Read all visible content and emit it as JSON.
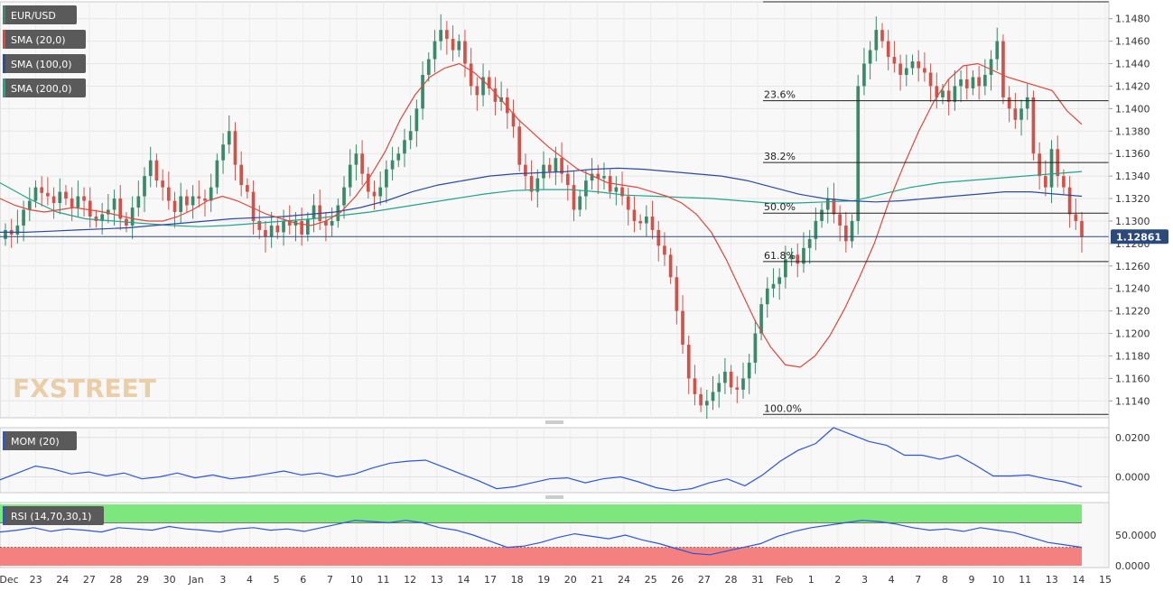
{
  "chart_data": {
    "type": "candlestick",
    "symbol": "EUR/USD",
    "price_scale": {
      "ylim": [
        1.1125,
        1.1495
      ],
      "ticks": [
        "1.1140",
        "1.1160",
        "1.1180",
        "1.1200",
        "1.1220",
        "1.1240",
        "1.1260",
        "1.1280",
        "1.1300",
        "1.1320",
        "1.1340",
        "1.1360",
        "1.1380",
        "1.1400",
        "1.1420",
        "1.1440",
        "1.1460",
        "1.1480"
      ]
    },
    "current_price": "1.12861",
    "x_ticks": [
      "Dec",
      "23",
      "24",
      "27",
      "28",
      "29",
      "30",
      "Jan",
      "3",
      "4",
      "5",
      "6",
      "7",
      "10",
      "11",
      "12",
      "13",
      "14",
      "17",
      "18",
      "19",
      "20",
      "21",
      "24",
      "25",
      "26",
      "27",
      "28",
      "31",
      "Feb",
      "1",
      "2",
      "3",
      "4",
      "7",
      "8",
      "9",
      "10",
      "11",
      "13",
      "14",
      "15"
    ],
    "indicators": [
      {
        "name": "SMA (20,0)",
        "color": "#e0473c"
      },
      {
        "name": "SMA (100,0)",
        "color": "#2b4aa0"
      },
      {
        "name": "SMA (200,0)",
        "color": "#23a38a"
      }
    ],
    "fibonacci": [
      {
        "label": "100.0%",
        "price": 1.1128
      },
      {
        "label": "61.8%",
        "price": 1.1264
      },
      {
        "label": "50.0%",
        "price": 1.1307
      },
      {
        "label": "38.2%",
        "price": 1.1352
      },
      {
        "label": "23.6%",
        "price": 1.1407
      },
      {
        "label": "",
        "price": 1.1495
      }
    ],
    "candles_close": [
      1.1292,
      1.1288,
      1.1296,
      1.131,
      1.1318,
      1.133,
      1.1325,
      1.1322,
      1.1316,
      1.1326,
      1.132,
      1.1312,
      1.1322,
      1.1318,
      1.1304,
      1.13,
      1.1306,
      1.131,
      1.132,
      1.1302,
      1.1296,
      1.1312,
      1.1322,
      1.134,
      1.1354,
      1.1336,
      1.133,
      1.1318,
      1.1308,
      1.1322,
      1.1314,
      1.1322,
      1.132,
      1.1318,
      1.133,
      1.1354,
      1.1368,
      1.138,
      1.135,
      1.1332,
      1.1326,
      1.13,
      1.1292,
      1.1286,
      1.1296,
      1.129,
      1.13,
      1.1296,
      1.13,
      1.1288,
      1.1302,
      1.1314,
      1.13,
      1.1296,
      1.13,
      1.1314,
      1.133,
      1.135,
      1.136,
      1.1342,
      1.1326,
      1.1322,
      1.133,
      1.1346,
      1.1354,
      1.136,
      1.1372,
      1.138,
      1.14,
      1.143,
      1.1444,
      1.146,
      1.147,
      1.1462,
      1.1452,
      1.146,
      1.144,
      1.142,
      1.1412,
      1.1428,
      1.1418,
      1.1406,
      1.141,
      1.1396,
      1.1384,
      1.135,
      1.134,
      1.1326,
      1.1338,
      1.135,
      1.1344,
      1.1356,
      1.1342,
      1.1332,
      1.131,
      1.1322,
      1.1336,
      1.1342,
      1.1338,
      1.134,
      1.1326,
      1.133,
      1.1322,
      1.131,
      1.13,
      1.1298,
      1.1304,
      1.1292,
      1.1278,
      1.127,
      1.125,
      1.122,
      1.119,
      1.116,
      1.1146,
      1.1136,
      1.114,
      1.1148,
      1.1156,
      1.1166,
      1.1152,
      1.115,
      1.116,
      1.1174,
      1.12,
      1.1226,
      1.124,
      1.1244,
      1.125,
      1.1266,
      1.127,
      1.1262,
      1.1276,
      1.1284,
      1.13,
      1.131,
      1.132,
      1.1306,
      1.1296,
      1.1282,
      1.13,
      1.142,
      1.144,
      1.1452,
      1.147,
      1.146,
      1.1446,
      1.144,
      1.143,
      1.1436,
      1.1442,
      1.1436,
      1.1432,
      1.142,
      1.141,
      1.1416,
      1.1406,
      1.142,
      1.1426,
      1.1418,
      1.1428,
      1.142,
      1.143,
      1.1444,
      1.146,
      1.141,
      1.14,
      1.139,
      1.14,
      1.141,
      1.136,
      1.134,
      1.133,
      1.1364,
      1.134,
      1.133,
      1.1306,
      1.13,
      1.1286
    ],
    "sma20": [
      1.132,
      1.1314,
      1.131,
      1.1308,
      1.131,
      1.1312,
      1.131,
      1.1308,
      1.1305,
      1.1302,
      1.13,
      1.13,
      1.1304,
      1.131,
      1.1318,
      1.1322,
      1.1318,
      1.1312,
      1.1306,
      1.1302,
      1.1298,
      1.1296,
      1.13,
      1.1308,
      1.1322,
      1.134,
      1.1362,
      1.139,
      1.1412,
      1.1428,
      1.1436,
      1.144,
      1.1432,
      1.142,
      1.1405,
      1.139,
      1.1378,
      1.1366,
      1.1356,
      1.1346,
      1.134,
      1.1334,
      1.1332,
      1.133,
      1.1326,
      1.1322,
      1.1316,
      1.1306,
      1.129,
      1.1266,
      1.1238,
      1.121,
      1.1188,
      1.1172,
      1.117,
      1.118,
      1.1198,
      1.1222,
      1.125,
      1.128,
      1.1318,
      1.135,
      1.138,
      1.1406,
      1.1426,
      1.1438,
      1.144,
      1.1434,
      1.1428,
      1.1424,
      1.142,
      1.1416,
      1.1398,
      1.1386
    ],
    "sma100": [
      1.129,
      1.129,
      1.1291,
      1.1292,
      1.1293,
      1.1294,
      1.1296,
      1.1298,
      1.13,
      1.1302,
      1.1303,
      1.1304,
      1.1306,
      1.1308,
      1.1312,
      1.1318,
      1.1326,
      1.1332,
      1.1336,
      1.134,
      1.1342,
      1.1343,
      1.1344,
      1.1346,
      1.1347,
      1.1346,
      1.1344,
      1.1342,
      1.134,
      1.1336,
      1.133,
      1.1324,
      1.132,
      1.1318,
      1.1317,
      1.1318,
      1.132,
      1.1322,
      1.1324,
      1.1326,
      1.1326,
      1.1324,
      1.1322
    ],
    "sma200": [
      1.1334,
      1.132,
      1.1308,
      1.1302,
      1.13,
      1.1298,
      1.1296,
      1.1295,
      1.1296,
      1.1298,
      1.13,
      1.1302,
      1.1305,
      1.1308,
      1.1312,
      1.1316,
      1.132,
      1.1324,
      1.1327,
      1.1328,
      1.1328,
      1.1326,
      1.1323,
      1.1322,
      1.1321,
      1.132,
      1.1318,
      1.1316,
      1.1316,
      1.1317,
      1.1318,
      1.1324,
      1.133,
      1.1334,
      1.1336,
      1.1338,
      1.134,
      1.1342,
      1.1344
    ],
    "momentum": {
      "name": "MOM (20)",
      "ticks": [
        "0.0200",
        "0.0000"
      ],
      "ylim": [
        -0.008,
        0.025
      ],
      "values": [
        -0.0015,
        0.002,
        0.0055,
        0.004,
        0.0015,
        0.0025,
        0.0005,
        0.002,
        -0.001,
        0.0,
        0.002,
        -0.0005,
        0.001,
        -0.001,
        0.0,
        0.0015,
        0.003,
        0.001,
        0.002,
        0.0,
        0.0015,
        0.0045,
        0.007,
        0.008,
        0.0085,
        0.005,
        0.0015,
        -0.002,
        -0.006,
        -0.005,
        -0.003,
        -0.001,
        -0.0005,
        -0.003,
        -0.001,
        0.0,
        -0.0025,
        -0.0055,
        -0.007,
        -0.006,
        -0.003,
        -0.001,
        -0.0045,
        0.001,
        0.008,
        0.0135,
        0.017,
        0.025,
        0.0215,
        0.018,
        0.016,
        0.011,
        0.011,
        0.009,
        0.011,
        0.006,
        0.0005,
        0.0005,
        0.001,
        -0.001,
        -0.0025,
        -0.005
      ]
    },
    "rsi": {
      "name": "RSI (14,70,30,1)",
      "ticks": [
        "50.0000",
        "0.0000"
      ],
      "ylim": [
        0,
        100
      ],
      "overbought": 70,
      "oversold": 30,
      "values": [
        55,
        58,
        62,
        56,
        60,
        58,
        55,
        62,
        60,
        58,
        64,
        60,
        58,
        55,
        60,
        62,
        58,
        60,
        56,
        62,
        68,
        74,
        72,
        70,
        74,
        70,
        62,
        58,
        50,
        40,
        30,
        32,
        38,
        46,
        52,
        48,
        44,
        50,
        42,
        36,
        28,
        20,
        18,
        24,
        30,
        36,
        48,
        56,
        62,
        66,
        70,
        74,
        72,
        68,
        62,
        58,
        60,
        56,
        62,
        58,
        54,
        46,
        38,
        34,
        30
      ]
    }
  }
}
